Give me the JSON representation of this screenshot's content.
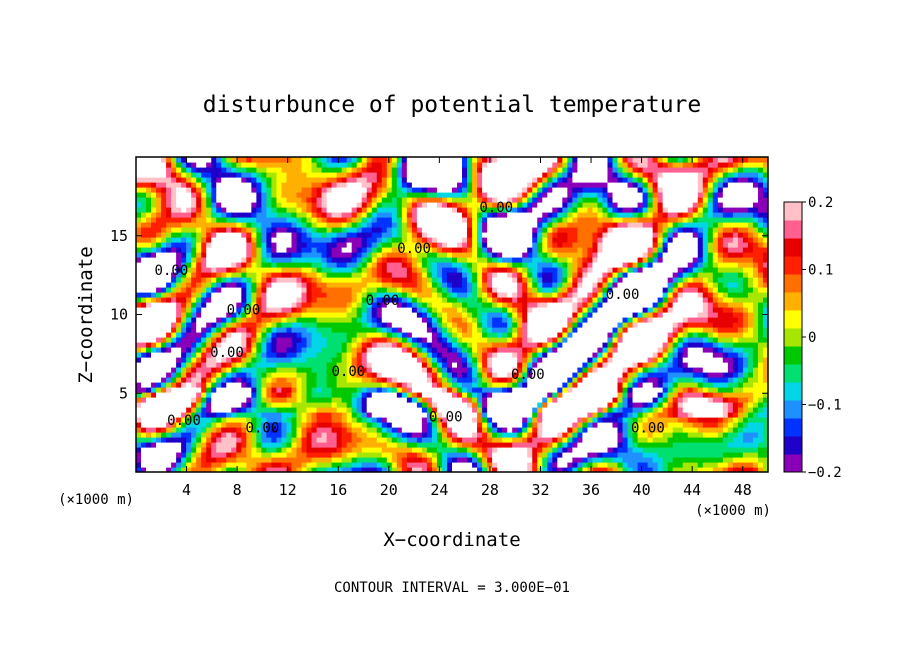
{
  "chart_data": {
    "type": "heatmap",
    "title": "disturbunce of potential temperature",
    "xlabel": "X−coordinate",
    "ylabel": "Z−coordinate",
    "x_unit_left": "(×1000 m)",
    "x_unit_right": "(×1000 m)",
    "xlim": [
      0,
      50
    ],
    "ylim": [
      0,
      20
    ],
    "x_ticks": [
      4,
      8,
      12,
      16,
      20,
      24,
      28,
      32,
      36,
      40,
      44,
      48
    ],
    "y_ticks": [
      5,
      10,
      15
    ],
    "footer": "CONTOUR INTERVAL = 3.000E−01",
    "contour_label": "0.00",
    "colorbar": {
      "min": -0.2,
      "max": 0.2,
      "ticks": [
        0.2,
        0.1,
        0,
        -0.1,
        -0.2
      ],
      "tick_labels": [
        "0.2",
        "0.1",
        "0",
        "−0.1",
        "−0.2"
      ],
      "colors": [
        "#8a00b8",
        "#1f00c8",
        "#0033ff",
        "#1e90ff",
        "#00d6e6",
        "#00e070",
        "#00c800",
        "#a6e600",
        "#ffff00",
        "#ffb000",
        "#ff7000",
        "#ff2000",
        "#e80000",
        "#ff6090",
        "#ffc0c8"
      ]
    }
  }
}
